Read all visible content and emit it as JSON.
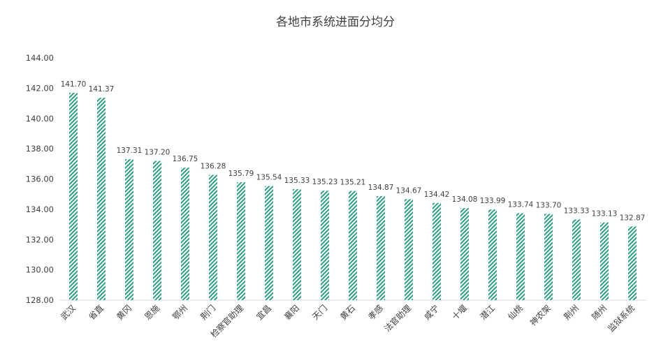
{
  "chart_data": {
    "type": "bar",
    "title": "各地市系统进面分均分",
    "xlabel": "",
    "ylabel": "",
    "ylim": [
      128,
      144
    ],
    "yticks": [
      "128.00",
      "130.00",
      "132.00",
      "134.00",
      "136.00",
      "138.00",
      "140.00",
      "142.00",
      "144.00"
    ],
    "grid": false,
    "legend": "none",
    "categories": [
      "武汉",
      "省直",
      "黄冈",
      "恩施",
      "鄂州",
      "荆门",
      "检察官助理",
      "宜昌",
      "襄阳",
      "天门",
      "黄石",
      "孝感",
      "法官助理",
      "咸宁",
      "十堰",
      "潜江",
      "仙桃",
      "神农架",
      "荆州",
      "随州",
      "监狱系统"
    ],
    "values": [
      141.7,
      141.37,
      137.31,
      137.2,
      136.75,
      136.28,
      135.79,
      135.54,
      135.33,
      135.23,
      135.21,
      134.87,
      134.67,
      134.42,
      134.08,
      133.99,
      133.74,
      133.7,
      133.33,
      133.13,
      132.87
    ],
    "data_labels": [
      "141.70",
      "141.37",
      "137.31",
      "137.20",
      "136.75",
      "136.28",
      "135.79",
      "135.54",
      "135.33",
      "135.23",
      "135.21",
      "134.87",
      "134.67",
      "134.42",
      "134.08",
      "133.99",
      "133.74",
      "133.70",
      "133.33",
      "133.13",
      "132.87"
    ],
    "bar_color": "#2e9e82",
    "bar_pattern": "diagonal-hatch"
  }
}
